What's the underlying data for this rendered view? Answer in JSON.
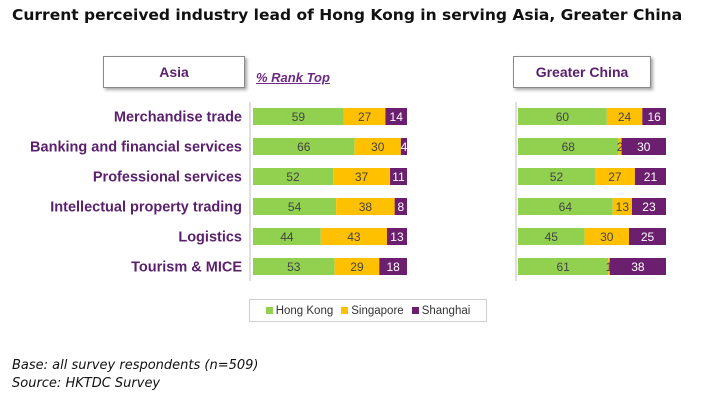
{
  "title": "Current perceived industry lead of Hong Kong in serving Asia, Greater China",
  "rank_top_label": "% Rank Top",
  "footnote": {
    "base": "Base: all survey respondents (n=509)",
    "source": "Source: HKTDC Survey"
  },
  "colors": {
    "hong_kong": "#92d050",
    "singapore": "#ffc000",
    "shanghai": "#6b1f6e",
    "category_label": "#5b1f6e"
  },
  "chart_data": {
    "type": "bar",
    "stacked": true,
    "orientation": "horizontal",
    "categories": [
      "Merchandise trade",
      "Banking and financial services",
      "Professional services",
      "Intellectual property trading",
      "Logistics",
      "Tourism & MICE"
    ],
    "legend": [
      "Hong Kong",
      "Singapore",
      "Shanghai"
    ],
    "legend_position": "bottom",
    "charts": [
      {
        "panel": "Asia",
        "series": [
          {
            "name": "Hong Kong",
            "values": [
              59,
              66,
              52,
              54,
              44,
              53
            ],
            "labels": [
              "59",
              "66",
              "52",
              "54",
              "44",
              "53"
            ]
          },
          {
            "name": "Singapore",
            "values": [
              27,
              30,
              37,
              38,
              43,
              29
            ],
            "labels": [
              "27",
              "30",
              "37",
              "38",
              "43",
              "29"
            ]
          },
          {
            "name": "Shanghai",
            "values": [
              14,
              4,
              11,
              8,
              13,
              18
            ],
            "labels": [
              "14",
              "4",
              "11",
              "8",
              "13",
              "18"
            ]
          }
        ]
      },
      {
        "panel": "Greater China",
        "series": [
          {
            "name": "Hong Kong",
            "values": [
              60,
              68,
              52,
              64,
              45,
              61
            ],
            "labels": [
              "60",
              "68",
              "52",
              "64",
              "45",
              "61"
            ]
          },
          {
            "name": "Singapore",
            "values": [
              24,
              2,
              27,
              13,
              30,
              1
            ],
            "labels": [
              "24",
              "2",
              "27",
              "13",
              "30",
              "1"
            ]
          },
          {
            "name": "Shanghai",
            "values": [
              16,
              30,
              21,
              23,
              25,
              38
            ],
            "labels": [
              "16",
              "30",
              "21",
              "23",
              "25",
              "38"
            ]
          }
        ]
      }
    ]
  }
}
